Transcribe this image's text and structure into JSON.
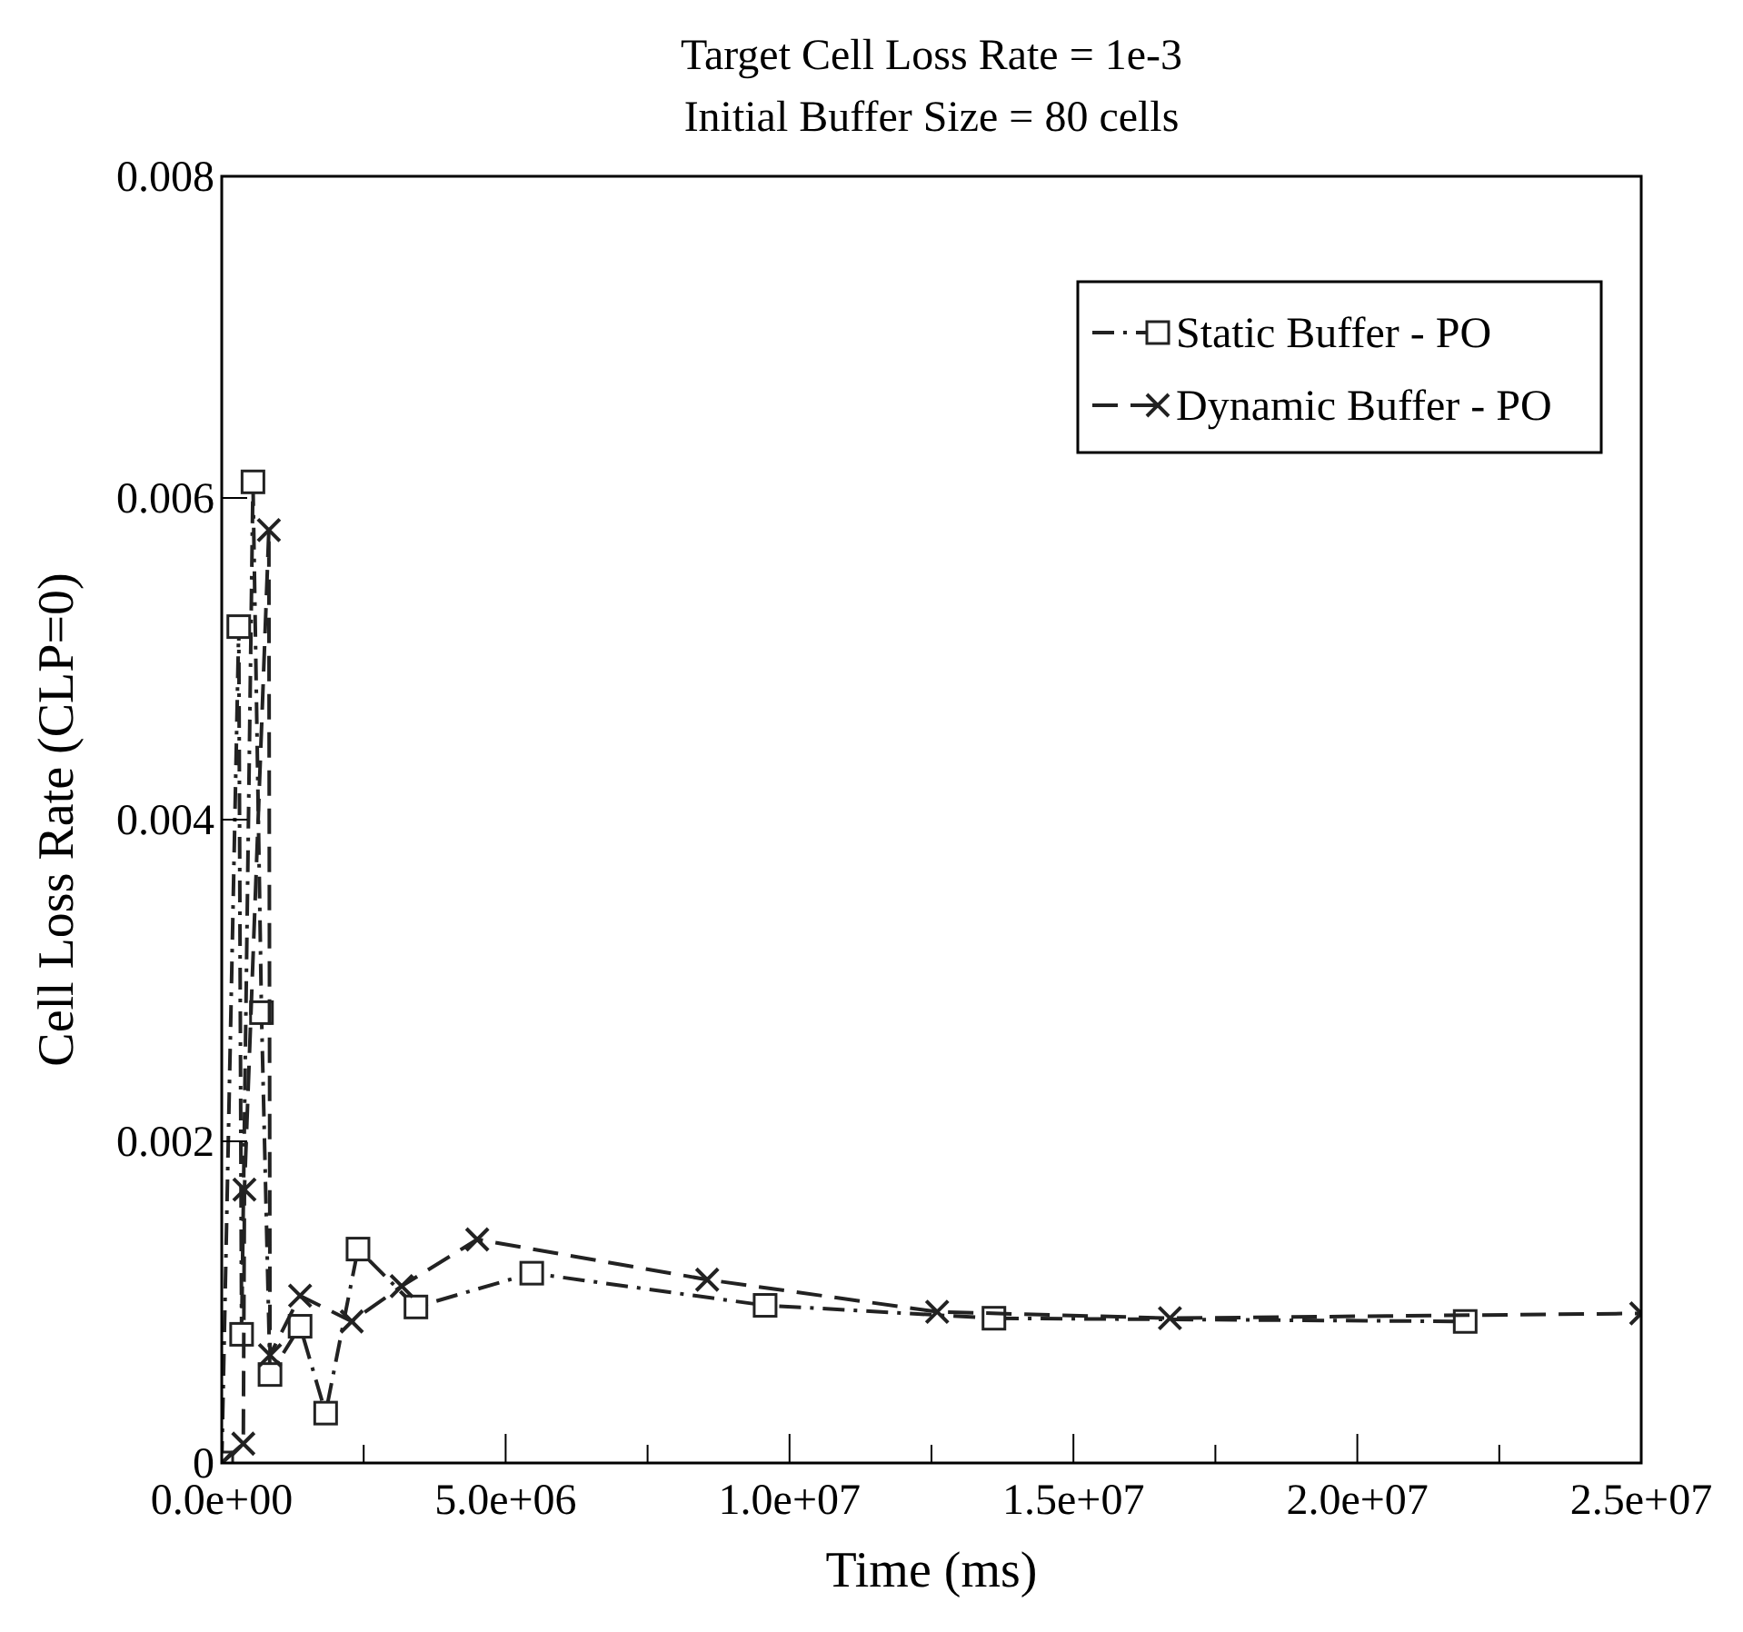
{
  "chart_data": {
    "type": "line",
    "title": "Target Cell Loss Rate = 1e-3",
    "subtitle": "Initial Buffer Size = 80 cells",
    "xlabel": "Time (ms)",
    "ylabel": "Cell Loss Rate (CLP=0)",
    "xlim": [
      0,
      25000000
    ],
    "ylim": [
      0,
      0.008
    ],
    "xticks": [
      {
        "value": 0,
        "label": "0.0e+00"
      },
      {
        "value": 2500000,
        "label": null
      },
      {
        "value": 5000000,
        "label": "5.0e+06"
      },
      {
        "value": 7500000,
        "label": null
      },
      {
        "value": 10000000,
        "label": "1.0e+07"
      },
      {
        "value": 12500000,
        "label": null
      },
      {
        "value": 15000000,
        "label": "1.5e+07"
      },
      {
        "value": 17500000,
        "label": null
      },
      {
        "value": 20000000,
        "label": "2.0e+07"
      },
      {
        "value": 22500000,
        "label": null
      },
      {
        "value": 25000000,
        "label": "2.5e+07"
      }
    ],
    "yticks": [
      0,
      0.002,
      0.004,
      0.006,
      0.008
    ],
    "grid": false,
    "legend": "top right",
    "series": [
      {
        "name": "Static Buffer - PO",
        "color": "#222222",
        "marker": "square",
        "line_style": "dashdot",
        "x": [
          0,
          300000,
          350000,
          550000,
          700000,
          850000,
          1380000,
          1830000,
          2400000,
          3420000,
          5460000,
          9570000,
          13600000,
          21900000
        ],
        "values": [
          0,
          0.0052,
          0.0008,
          0.0061,
          0.0028,
          0.00055,
          0.00085,
          0.00031,
          0.00133,
          0.00097,
          0.00118,
          0.00098,
          0.0009,
          0.00088
        ]
      },
      {
        "name": "Dynamic Buffer - PO",
        "color": "#222222",
        "marker": "cross",
        "line_style": "dashed",
        "x": [
          0,
          380000,
          400000,
          830000,
          850000,
          1380000,
          2290000,
          3170000,
          4500000,
          8550000,
          12600000,
          16700000,
          25000000
        ],
        "values": [
          0,
          0.00012,
          0.0017,
          0.0058,
          0.00067,
          0.00104,
          0.00088,
          0.0011,
          0.00139,
          0.00114,
          0.00094,
          0.0009,
          0.00093
        ]
      }
    ]
  }
}
